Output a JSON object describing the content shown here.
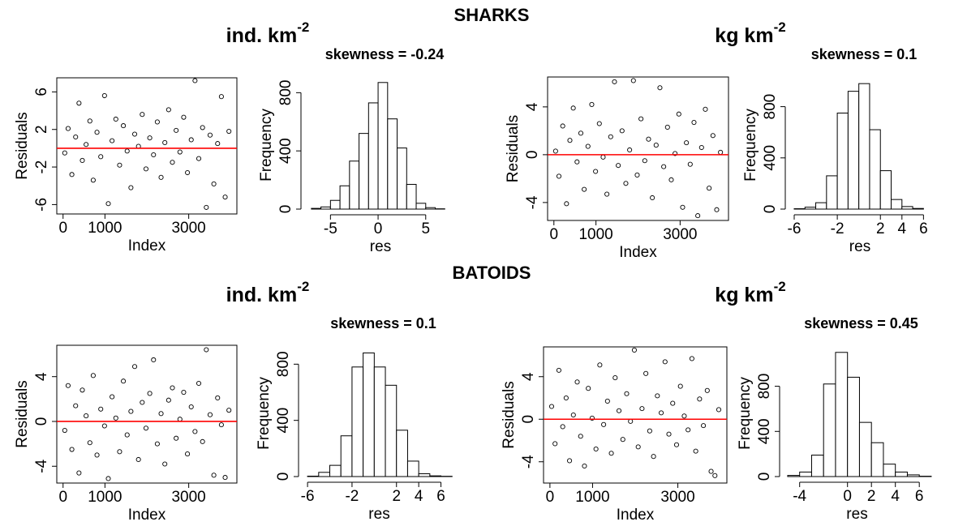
{
  "sections": [
    {
      "title": "SHARKS",
      "headers": [
        {
          "text": "ind.  km",
          "sup": "-2"
        },
        {
          "text": "kg km",
          "sup": "-2"
        }
      ]
    },
    {
      "title": "BATOIDS",
      "headers": [
        {
          "text": "ind.  km",
          "sup": "-2"
        },
        {
          "text": "kg km",
          "sup": "-2"
        }
      ]
    }
  ],
  "chart_data": [
    {
      "type": "scatter",
      "xlabel": "Index",
      "ylabel": "Residuals",
      "xlim": [
        -150,
        4150
      ],
      "ylim": [
        -7,
        7.5
      ],
      "xticks": [
        0,
        1000,
        3000
      ],
      "yticks": [
        -6,
        -2,
        2,
        6
      ],
      "color": "#000000",
      "hline": 0,
      "hline_color": "#ff0000",
      "x": [
        40,
        120,
        210,
        300,
        380,
        460,
        550,
        640,
        720,
        810,
        900,
        990,
        1080,
        1170,
        1260,
        1350,
        1440,
        1530,
        1620,
        1710,
        1800,
        1890,
        1980,
        2070,
        2160,
        2250,
        2340,
        2430,
        2520,
        2610,
        2700,
        2790,
        2880,
        2970,
        3060,
        3150,
        3240,
        3330,
        3420,
        3510,
        3600,
        3690,
        3780,
        3870,
        3960
      ],
      "values": [
        -0.5,
        2.1,
        -2.8,
        1.2,
        4.8,
        -1.3,
        0.4,
        2.9,
        -3.4,
        1.7,
        -0.9,
        5.6,
        -5.9,
        0.8,
        3.1,
        -1.8,
        2.4,
        -0.3,
        -4.2,
        1.5,
        0.2,
        3.6,
        -2.2,
        1.1,
        -0.7,
        2.8,
        -3.1,
        0.6,
        4.1,
        -1.5,
        1.9,
        -0.4,
        3.3,
        -2.6,
        0.9,
        7.2,
        -1.1,
        2.2,
        -6.3,
        1.4,
        -3.8,
        0.5,
        5.5,
        -5.2,
        1.8
      ]
    },
    {
      "type": "histogram",
      "title": "skewness =  -0.24",
      "xlabel": "res",
      "ylabel": "Frequency",
      "bins": [
        -7,
        -6,
        -5,
        -4,
        -3,
        -2,
        -1,
        0,
        1,
        2,
        3,
        4,
        5,
        6,
        7
      ],
      "values": [
        5,
        15,
        60,
        160,
        330,
        520,
        730,
        870,
        620,
        420,
        170,
        40,
        10,
        2
      ],
      "xlim": [
        -7.5,
        8
      ],
      "ylim": [
        0,
        880
      ],
      "xticks": [
        -5,
        0,
        5
      ],
      "yticks": [
        0,
        400,
        800
      ],
      "color": "#ffffff"
    },
    {
      "type": "scatter",
      "xlabel": "Index",
      "ylabel": "Residuals",
      "xlim": [
        -150,
        4150
      ],
      "ylim": [
        -5.5,
        6.5
      ],
      "xticks": [
        0,
        1000,
        3000
      ],
      "yticks": [
        -4,
        0,
        4
      ],
      "color": "#000000",
      "hline": 0,
      "hline_color": "#ff0000",
      "x": [
        40,
        120,
        210,
        300,
        380,
        460,
        550,
        640,
        720,
        810,
        900,
        990,
        1080,
        1170,
        1260,
        1350,
        1440,
        1530,
        1620,
        1710,
        1800,
        1890,
        1980,
        2070,
        2160,
        2250,
        2340,
        2430,
        2520,
        2610,
        2700,
        2790,
        2880,
        2970,
        3060,
        3150,
        3240,
        3330,
        3420,
        3510,
        3600,
        3690,
        3780,
        3870,
        3960
      ],
      "values": [
        0.3,
        -1.8,
        2.4,
        -4.1,
        1.2,
        3.9,
        -0.6,
        1.8,
        -2.9,
        0.7,
        4.2,
        -1.4,
        2.6,
        -0.2,
        -3.3,
        1.5,
        6.1,
        -0.9,
        2.0,
        -2.4,
        0.4,
        6.2,
        -1.7,
        3.0,
        -0.5,
        1.3,
        -3.6,
        0.8,
        5.6,
        -1.0,
        2.3,
        -2.1,
        0.1,
        3.4,
        -4.4,
        1.0,
        -0.8,
        2.7,
        -5.1,
        0.6,
        3.8,
        -2.8,
        1.6,
        -4.6,
        0.2
      ]
    },
    {
      "type": "histogram",
      "title": "skewness =  0.1",
      "xlabel": "res",
      "ylabel": "Frequency",
      "bins": [
        -6,
        -5,
        -4,
        -3,
        -2,
        -1,
        0,
        1,
        2,
        3,
        4,
        5,
        6
      ],
      "values": [
        3,
        15,
        50,
        260,
        750,
        920,
        980,
        620,
        300,
        75,
        20,
        5
      ],
      "xlim": [
        -6.3,
        6.5
      ],
      "ylim": [
        0,
        1000
      ],
      "xticks": [
        -6,
        -2,
        2,
        4,
        6
      ],
      "yticks": [
        0,
        400,
        800
      ],
      "color": "#ffffff"
    },
    {
      "type": "scatter",
      "xlabel": "Index",
      "ylabel": "Residuals",
      "xlim": [
        -150,
        4150
      ],
      "ylim": [
        -5.5,
        6.8
      ],
      "xticks": [
        0,
        1000,
        3000
      ],
      "yticks": [
        -4,
        0,
        4
      ],
      "color": "#000000",
      "hline": 0,
      "hline_color": "#ff0000",
      "x": [
        40,
        120,
        210,
        300,
        380,
        460,
        550,
        640,
        720,
        810,
        900,
        990,
        1080,
        1170,
        1260,
        1350,
        1440,
        1530,
        1620,
        1710,
        1800,
        1890,
        1980,
        2070,
        2160,
        2250,
        2340,
        2430,
        2520,
        2610,
        2700,
        2790,
        2880,
        2970,
        3060,
        3150,
        3240,
        3330,
        3420,
        3510,
        3600,
        3690,
        3780,
        3870,
        3960
      ],
      "values": [
        -0.8,
        3.2,
        -2.5,
        1.4,
        -4.6,
        2.8,
        0.5,
        -1.9,
        4.1,
        -3.0,
        1.1,
        -0.4,
        -5.1,
        2.2,
        0.3,
        -2.7,
        3.6,
        -1.2,
        0.9,
        4.9,
        -3.4,
        1.7,
        -0.6,
        2.5,
        5.5,
        -2.0,
        0.7,
        -3.8,
        1.9,
        3.0,
        -1.5,
        0.2,
        2.6,
        -2.9,
        1.3,
        -0.9,
        3.4,
        -1.8,
        6.4,
        0.6,
        -4.8,
        2.1,
        -0.3,
        -5.0,
        1.0
      ]
    },
    {
      "type": "histogram",
      "title": "skewness =  0.1",
      "xlabel": "res",
      "ylabel": "Frequency",
      "bins": [
        -6,
        -5,
        -4,
        -3,
        -2,
        -1,
        0,
        1,
        2,
        3,
        4,
        5,
        6,
        7
      ],
      "values": [
        3,
        30,
        80,
        290,
        780,
        880,
        780,
        650,
        330,
        110,
        20,
        5,
        2
      ],
      "xlim": [
        -6.3,
        7.2
      ],
      "ylim": [
        0,
        900
      ],
      "xticks": [
        -6,
        -2,
        2,
        4,
        6
      ],
      "yticks": [
        0,
        400,
        800
      ],
      "color": "#ffffff"
    },
    {
      "type": "scatter",
      "xlabel": "Index",
      "ylabel": "Residuals",
      "xlim": [
        -150,
        4150
      ],
      "ylim": [
        -6,
        6.8
      ],
      "xticks": [
        0,
        1000,
        3000
      ],
      "yticks": [
        -4,
        0,
        4
      ],
      "color": "#000000",
      "hline": 0,
      "hline_color": "#ff0000",
      "x": [
        40,
        120,
        210,
        300,
        380,
        460,
        550,
        640,
        720,
        810,
        900,
        990,
        1080,
        1170,
        1260,
        1350,
        1440,
        1530,
        1620,
        1710,
        1800,
        1890,
        1980,
        2070,
        2160,
        2250,
        2340,
        2430,
        2520,
        2610,
        2700,
        2790,
        2880,
        2970,
        3060,
        3150,
        3240,
        3330,
        3420,
        3510,
        3600,
        3690,
        3780,
        3870,
        3960
      ],
      "values": [
        1.2,
        -2.3,
        4.6,
        -0.7,
        2.0,
        -3.9,
        0.4,
        3.5,
        -1.6,
        -4.4,
        2.9,
        0.1,
        -2.8,
        5.1,
        -0.5,
        1.7,
        -3.2,
        3.9,
        0.8,
        -1.9,
        2.4,
        -0.2,
        6.5,
        -2.6,
        1.0,
        4.3,
        -1.1,
        -3.5,
        2.2,
        0.6,
        5.4,
        -1.4,
        1.5,
        -2.4,
        3.1,
        0.3,
        -1.0,
        5.7,
        -3.0,
        1.9,
        -0.6,
        2.7,
        -4.9,
        -5.3,
        0.9
      ]
    },
    {
      "type": "histogram",
      "title": "skewness =  0.45",
      "xlabel": "res",
      "ylabel": "Frequency",
      "bins": [
        -5,
        -4,
        -3,
        -2,
        -1,
        0,
        1,
        2,
        3,
        4,
        5,
        6,
        7
      ],
      "values": [
        10,
        40,
        190,
        820,
        1100,
        880,
        480,
        300,
        110,
        40,
        15,
        3
      ],
      "xlim": [
        -5.2,
        6.8
      ],
      "ylim": [
        0,
        1120
      ],
      "xticks": [
        -4,
        0,
        2,
        4,
        6
      ],
      "yticks": [
        0,
        400,
        800
      ],
      "color": "#ffffff"
    }
  ]
}
